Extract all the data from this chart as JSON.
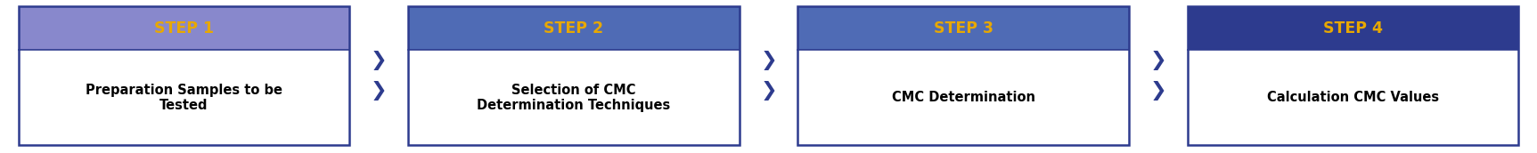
{
  "steps": [
    {
      "label": "STEP 1",
      "body": "Preparation Samples to be\nTested"
    },
    {
      "label": "STEP 2",
      "body": "Selection of CMC\nDetermination Techniques"
    },
    {
      "label": "STEP 3",
      "body": "CMC Determination"
    },
    {
      "label": "STEP 4",
      "body": "Calculation CMC Values"
    }
  ],
  "header_colors": [
    "#8888CC",
    "#4F6BB5",
    "#4F6BB5",
    "#2D3B8E"
  ],
  "header_text_color": "#E8A800",
  "body_text_color": "#000000",
  "body_bg_color": "#FFFFFF",
  "border_color": "#2D3B8E",
  "arrow_color": "#2D3B8E",
  "bg_color": "#FFFFFF",
  "header_fontsize": 12.5,
  "body_fontsize": 10.5,
  "arrow_fontsize": 16
}
